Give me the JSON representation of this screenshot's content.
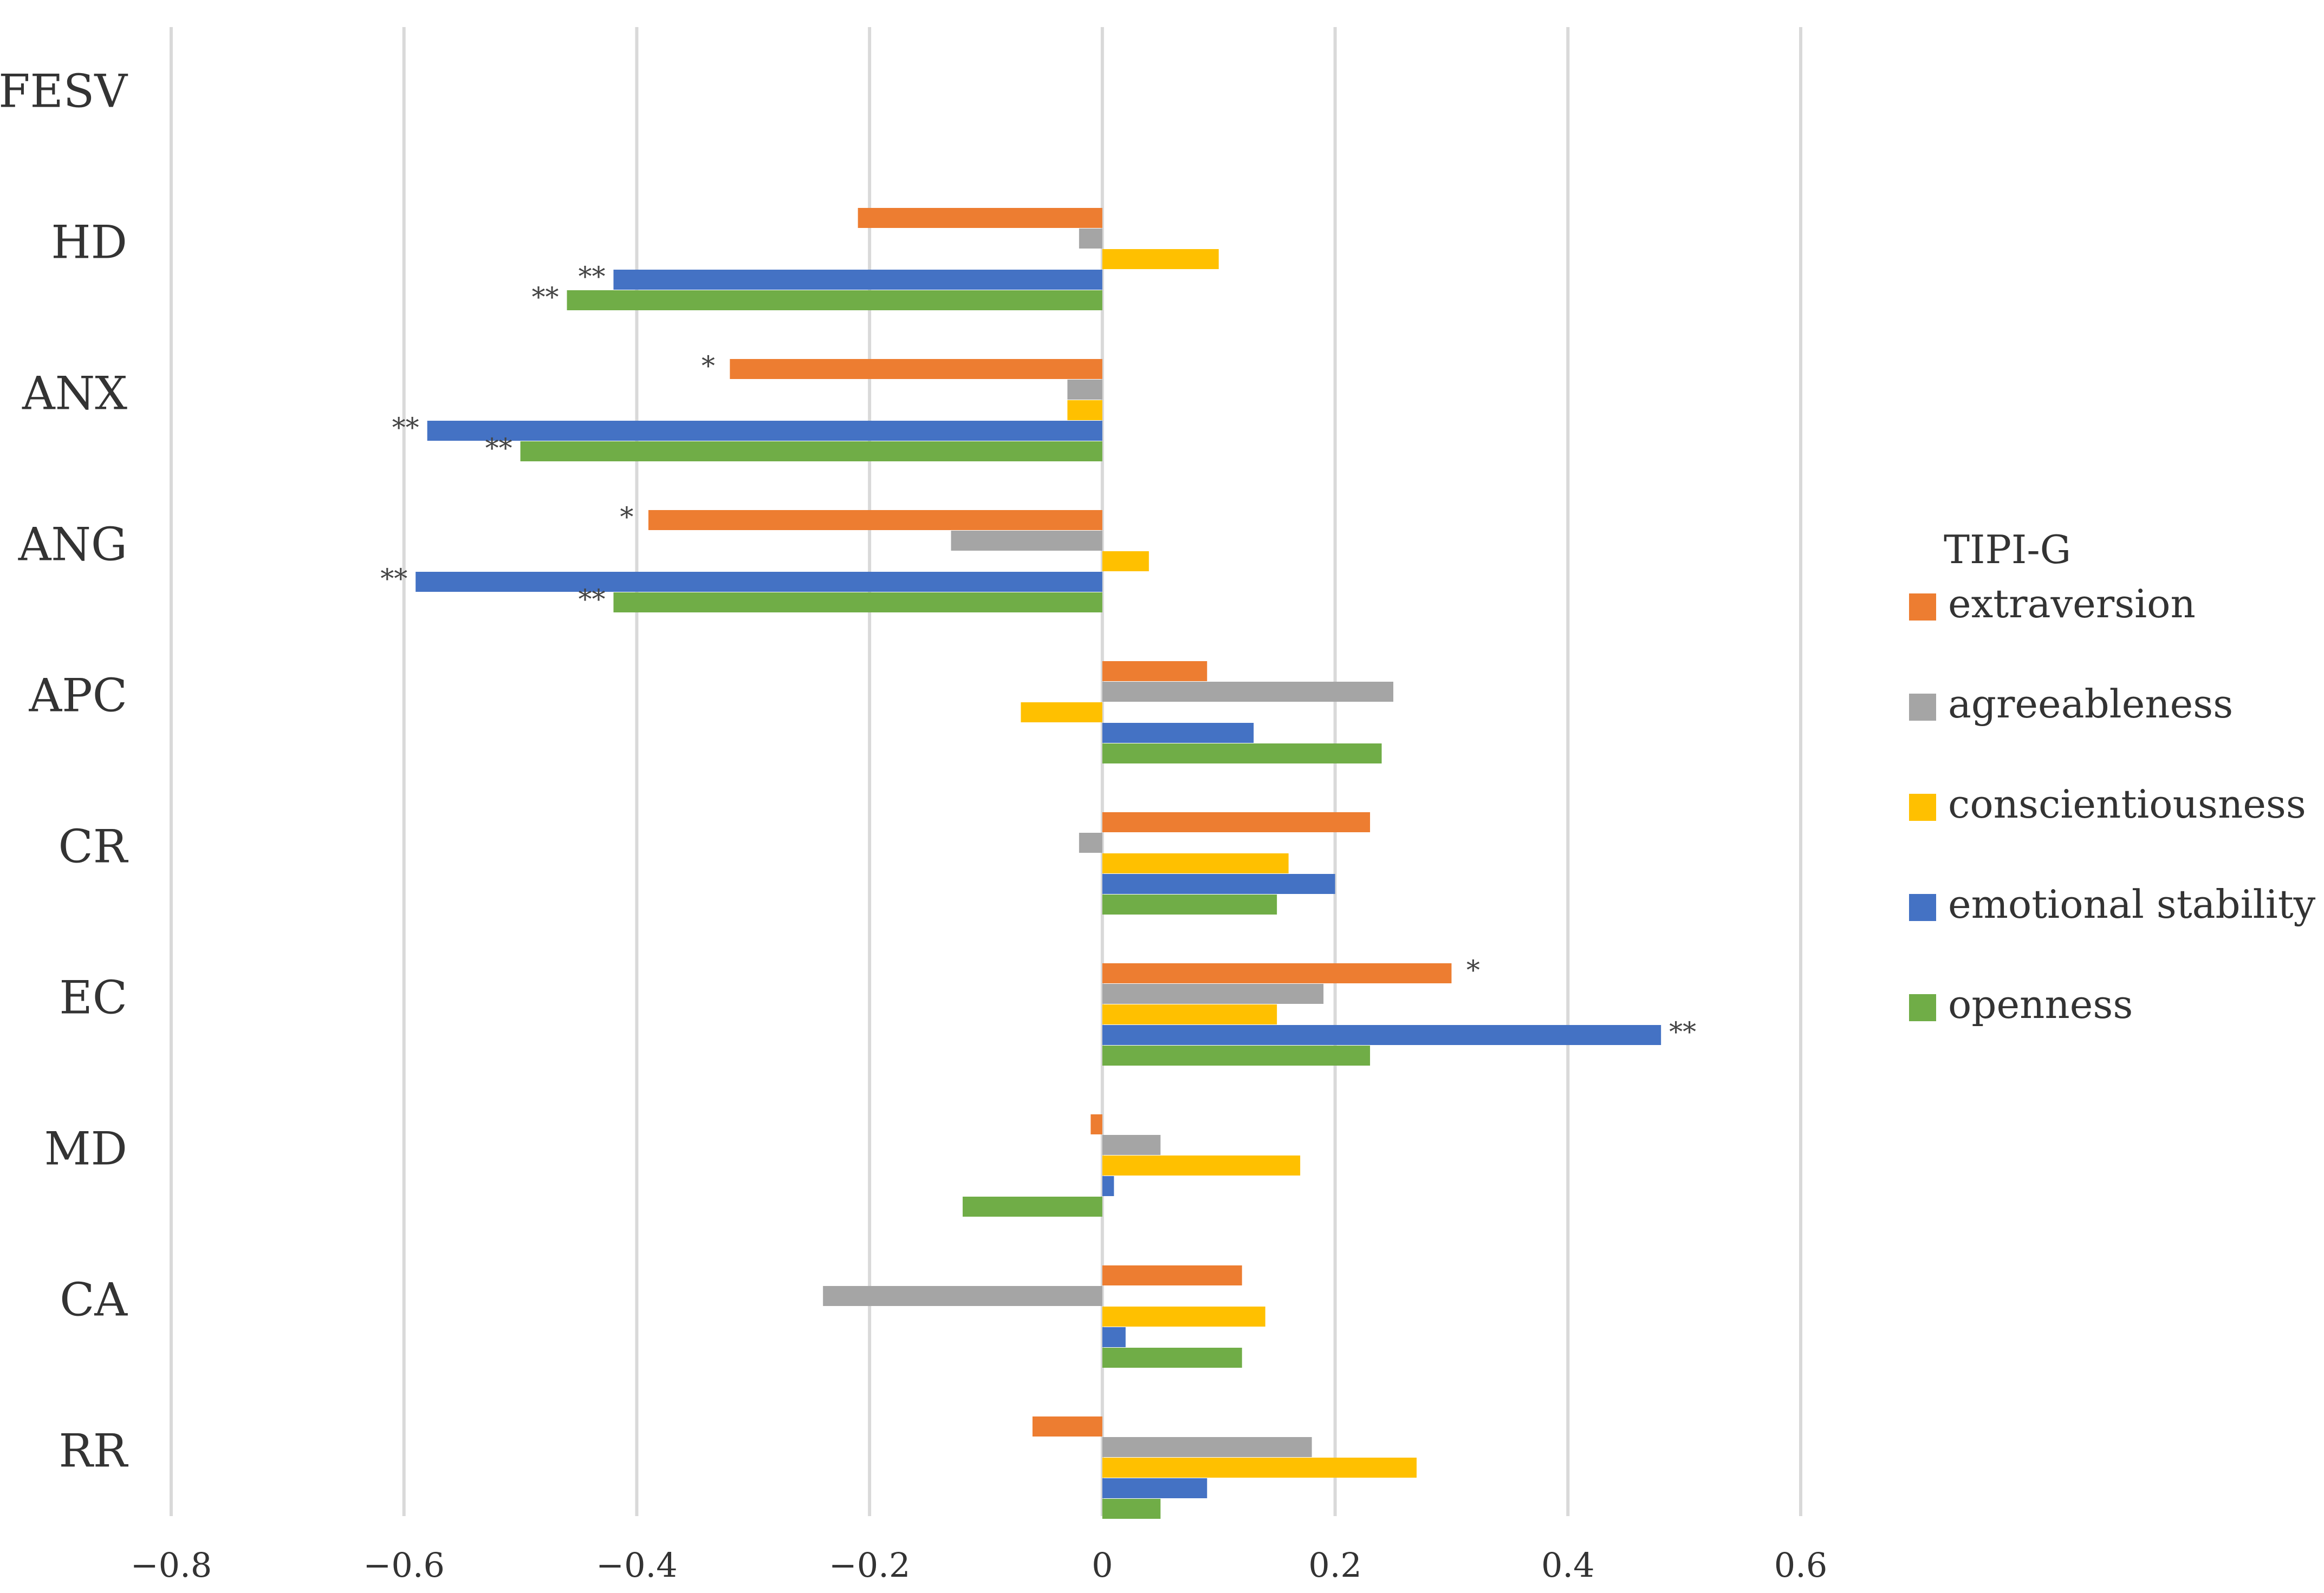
{
  "chart_data": {
    "type": "bar",
    "orientation": "horizontal",
    "title": "",
    "xlabel": "",
    "ylabel": "",
    "xlim": [
      -0.8,
      0.6
    ],
    "xticks": [
      -0.8,
      -0.6,
      -0.4,
      -0.2,
      0,
      0.2,
      0.4,
      0.6
    ],
    "xtick_labels": [
      "−0.8",
      "−0.6",
      "−0.4",
      "−0.2",
      "0",
      "0.2",
      "0.4",
      "0.6"
    ],
    "grid": true,
    "categories": [
      "FESV",
      "HD",
      "ANX",
      "ANG",
      "APC",
      "CR",
      "EC",
      "MD",
      "CA",
      "RR"
    ],
    "legend": {
      "title": "TIPI-G",
      "position": "right"
    },
    "series": [
      {
        "name": "extraversion",
        "color": "#ED7D31",
        "values": [
          null,
          -0.21,
          -0.32,
          -0.39,
          0.09,
          0.23,
          0.3,
          -0.01,
          0.12,
          -0.06
        ],
        "sig": [
          "",
          "",
          "*",
          "*",
          "",
          "",
          "*",
          "",
          "",
          ""
        ]
      },
      {
        "name": "agreeableness",
        "color": "#A5A5A5",
        "values": [
          null,
          -0.02,
          -0.03,
          -0.13,
          0.25,
          -0.02,
          0.19,
          0.05,
          -0.24,
          0.18
        ],
        "sig": [
          "",
          "",
          "",
          "",
          "",
          "",
          "",
          "",
          "",
          ""
        ]
      },
      {
        "name": "conscientiousness",
        "color": "#FFC000",
        "values": [
          null,
          0.1,
          -0.03,
          0.04,
          -0.07,
          0.16,
          0.15,
          0.17,
          0.14,
          0.27
        ],
        "sig": [
          "",
          "",
          "",
          "",
          "",
          "",
          "",
          "",
          "",
          ""
        ]
      },
      {
        "name": "emotional stability",
        "color": "#4472C4",
        "values": [
          null,
          -0.42,
          -0.58,
          -0.59,
          0.13,
          0.2,
          0.48,
          0.01,
          0.02,
          0.09
        ],
        "sig": [
          "",
          "**",
          "**",
          "**",
          "",
          "",
          "**",
          "",
          "",
          ""
        ]
      },
      {
        "name": "openness",
        "color": "#70AD47",
        "values": [
          null,
          -0.46,
          -0.5,
          -0.42,
          0.24,
          0.15,
          0.23,
          -0.12,
          0.12,
          0.05
        ],
        "sig": [
          "",
          "**",
          "**",
          "**",
          "",
          "",
          "",
          "",
          "",
          ""
        ]
      }
    ]
  }
}
